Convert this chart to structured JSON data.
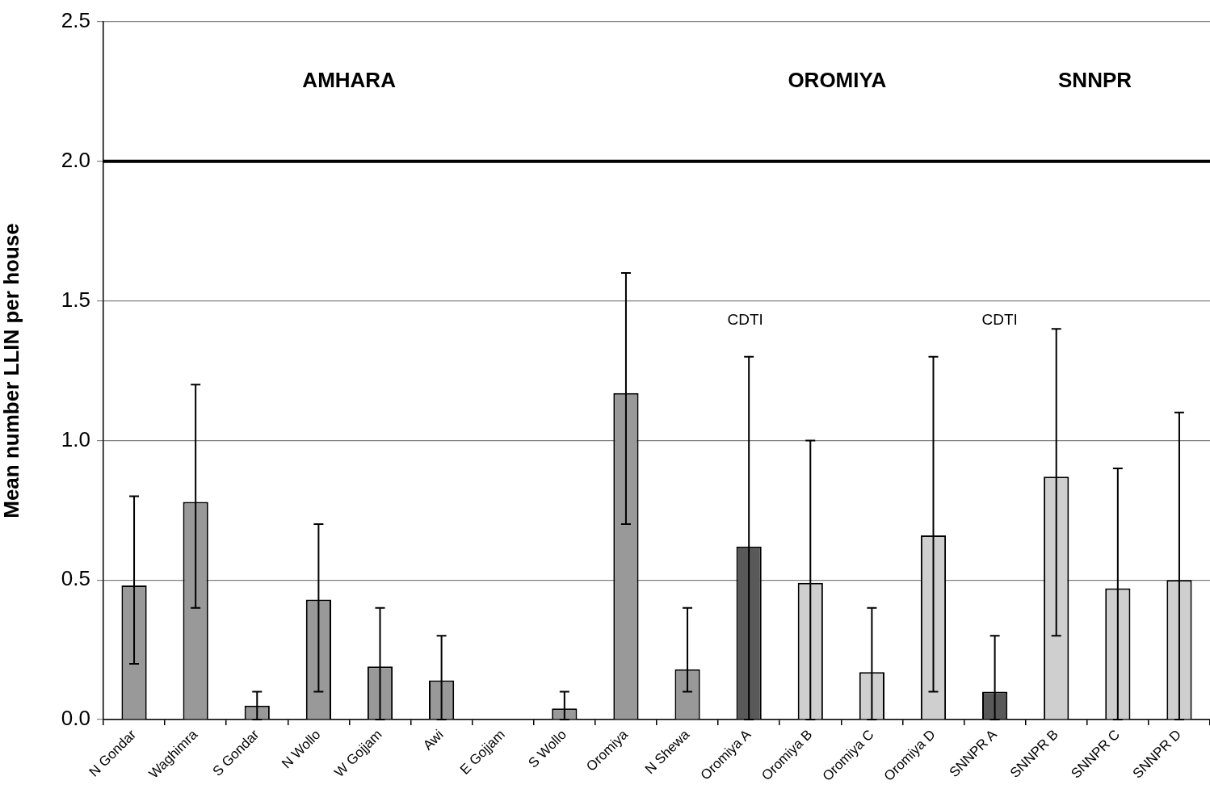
{
  "chart_data": {
    "type": "bar",
    "ylabel": "Mean number LLIN per house",
    "categories": [
      "N Gondar",
      "Waghimra",
      "S Gondar",
      "N Wollo",
      "W Gojjam",
      "Awi",
      "E Gojjam",
      "S Wollo",
      "Oromiya",
      "N Shewa",
      "Oromiya A",
      "Oromiya B",
      "Oromiya C",
      "Oromiya D",
      "SNNPR A",
      "SNNPR B",
      "SNNPR C",
      "SNNPR D"
    ],
    "values": [
      0.48,
      0.78,
      0.05,
      0.43,
      0.19,
      0.14,
      0,
      0.04,
      1.17,
      0.18,
      0.62,
      0.49,
      0.17,
      0.66,
      0.1,
      0.87,
      0.47,
      0.5
    ],
    "colors": [
      "#999999",
      "#999999",
      "#999999",
      "#999999",
      "#999999",
      "#999999",
      "#999999",
      "#999999",
      "#999999",
      "#999999",
      "#595959",
      "#cfcfcf",
      "#cfcfcf",
      "#cfcfcf",
      "#595959",
      "#cfcfcf",
      "#cfcfcf",
      "#cfcfcf"
    ],
    "errors": [
      [
        0.2,
        0.8
      ],
      [
        0.4,
        1.2
      ],
      [
        0,
        0.1
      ],
      [
        0.1,
        0.7
      ],
      [
        0,
        0.4
      ],
      [
        0,
        0.3
      ],
      null,
      [
        0,
        0.1
      ],
      [
        0.7,
        1.6
      ],
      [
        0.1,
        0.4
      ],
      [
        0,
        1.3
      ],
      [
        0,
        1.0
      ],
      [
        0,
        0.4
      ],
      [
        0.1,
        1.3
      ],
      [
        0,
        0.3
      ],
      [
        0.3,
        1.4
      ],
      [
        0,
        0.9
      ],
      [
        0,
        1.1
      ]
    ],
    "ylim": [
      0,
      2.5
    ],
    "yticks": [
      {
        "value": 0,
        "label": "0.0"
      },
      0.5,
      {
        "value": 1,
        "label": "1.0"
      },
      1.5,
      {
        "value": 2,
        "label": "2.0"
      },
      2.5
    ],
    "grid": "y",
    "ref_lines": [
      {
        "axis": "y",
        "value": 2,
        "color": "#000000"
      }
    ],
    "annotations": [
      "AMHARA",
      "OROMIYA",
      "SNNPR",
      "CDTI",
      "CDTI"
    ]
  }
}
